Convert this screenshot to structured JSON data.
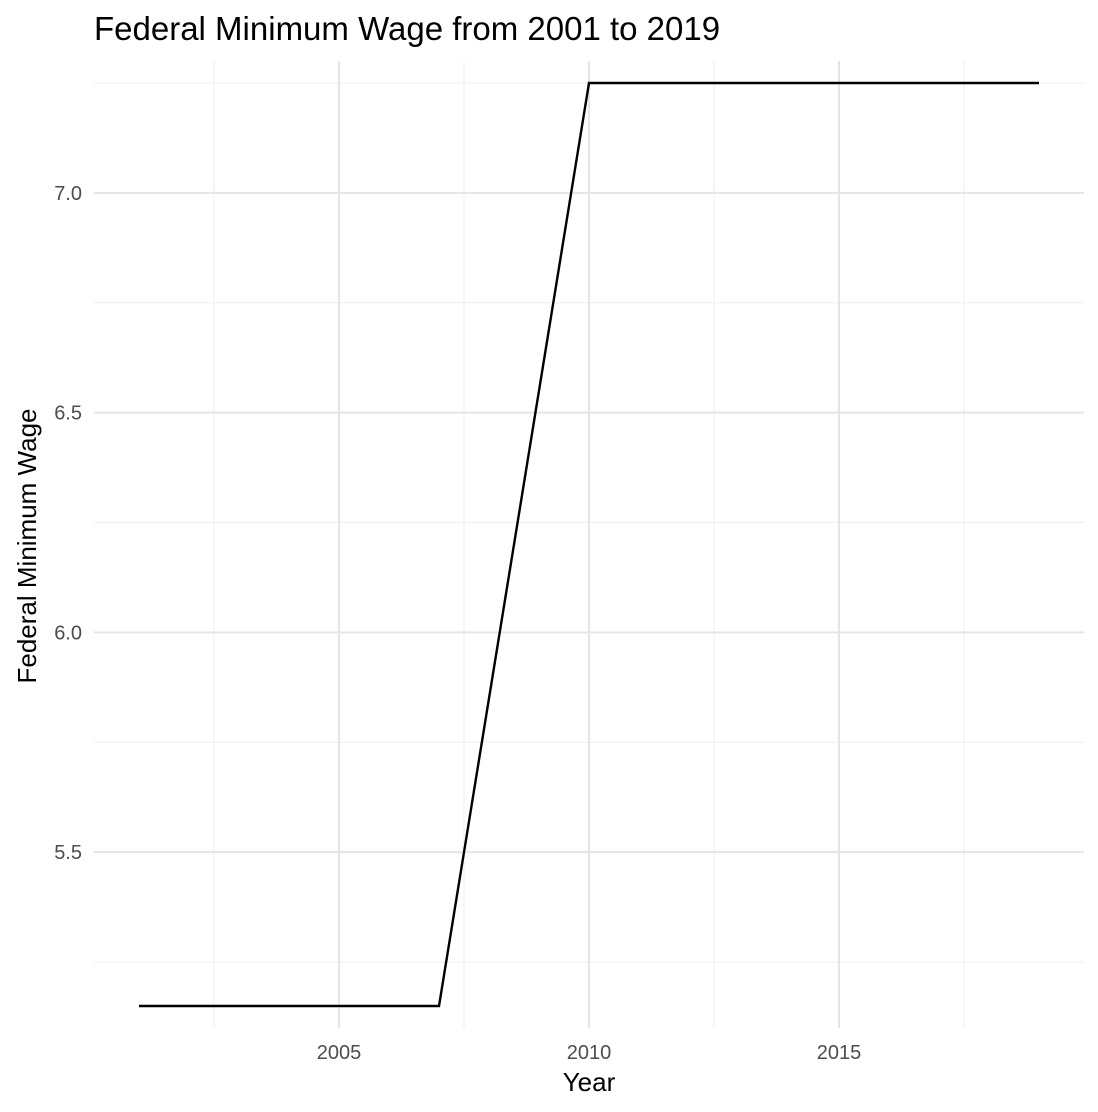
{
  "chart_data": {
    "type": "line",
    "title": "Federal Minimum Wage from 2001 to 2019",
    "xlabel": "Year",
    "ylabel": "Federal Minimum Wage",
    "xlim": [
      2000.1,
      2019.9
    ],
    "ylim": [
      5.1,
      7.3
    ],
    "x_ticks": [
      2005,
      2010,
      2015
    ],
    "x_tick_labels": [
      "2005",
      "2010",
      "2015"
    ],
    "x_minor_ticks": [
      2002.5,
      2007.5,
      2012.5,
      2017.5
    ],
    "y_ticks": [
      5.5,
      6.0,
      6.5,
      7.0
    ],
    "y_tick_labels": [
      "5.5",
      "6.0",
      "6.5",
      "7.0"
    ],
    "y_minor_ticks": [
      5.25,
      5.75,
      6.25,
      6.75,
      7.25
    ],
    "grid": true,
    "series": [
      {
        "color": "#000000",
        "x": [
          2001,
          2007,
          2010,
          2019
        ],
        "values": [
          5.15,
          5.15,
          7.25,
          7.25
        ]
      }
    ]
  }
}
